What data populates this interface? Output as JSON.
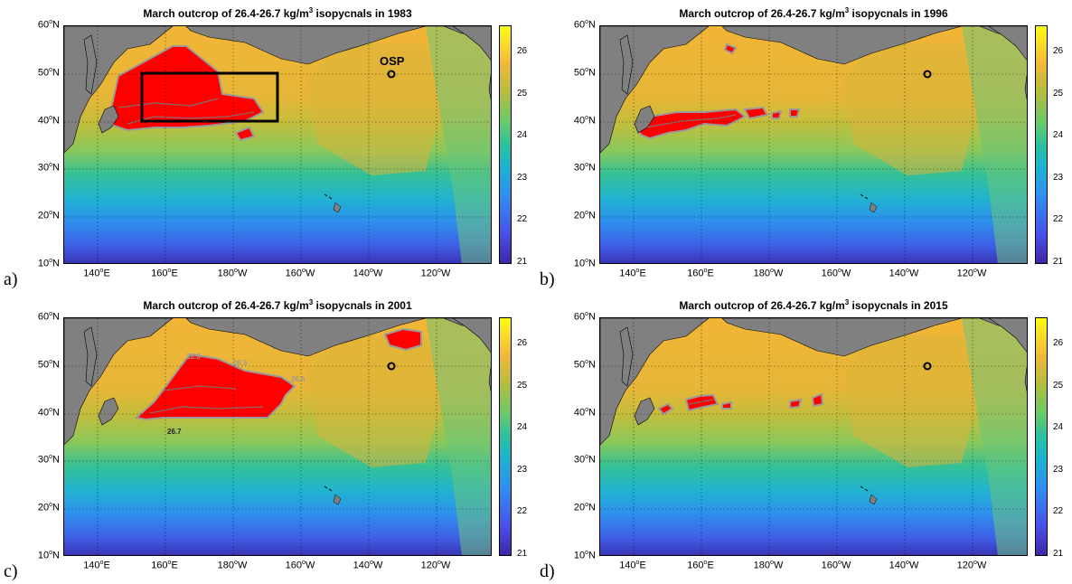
{
  "title_prefix": "March outcrop of 26.4-26.7 kg/m",
  "title_sup": "3",
  "title_mid": " isopycnals in ",
  "y_ticks": [
    {
      "num": "60",
      "deg": "o",
      "hem": "N"
    },
    {
      "num": "50",
      "deg": "o",
      "hem": "N"
    },
    {
      "num": "40",
      "deg": "o",
      "hem": "N"
    },
    {
      "num": "30",
      "deg": "o",
      "hem": "N"
    },
    {
      "num": "20",
      "deg": "o",
      "hem": "N"
    },
    {
      "num": "10",
      "deg": "o",
      "hem": "N"
    }
  ],
  "x_ticks": [
    {
      "num": "140",
      "deg": "o",
      "hem": "E"
    },
    {
      "num": "160",
      "deg": "o",
      "hem": "E"
    },
    {
      "num": "180",
      "deg": "o",
      "hem": "W"
    },
    {
      "num": "160",
      "deg": "o",
      "hem": "W"
    },
    {
      "num": "140",
      "deg": "o",
      "hem": "W"
    },
    {
      "num": "120",
      "deg": "o",
      "hem": "W"
    }
  ],
  "colorbar": {
    "ticks": [
      "26",
      "25",
      "24",
      "23",
      "22",
      "21"
    ],
    "colors": {
      "low": "#3d26a8",
      "mid": "#29c29f",
      "high": "#f9fb0e"
    }
  },
  "colors": {
    "outcrop_red": "#ff0000",
    "land": "#808080",
    "contour_gray": "#9a9a9a"
  },
  "panels": [
    {
      "label": "a)",
      "year": "1983",
      "osp_label": "OSP",
      "has_box": true
    },
    {
      "label": "b)",
      "year": "1996"
    },
    {
      "label": "c)",
      "year": "2001",
      "contour_labels": [
        "26.6",
        "26.5",
        "26.6",
        "26.7"
      ]
    },
    {
      "label": "d)",
      "year": "2015"
    }
  ]
}
